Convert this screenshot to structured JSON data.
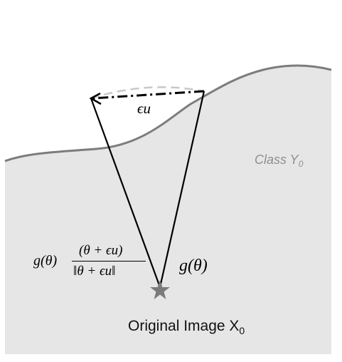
{
  "diagram": {
    "eps_u_label": "ϵu",
    "g_theta_label": "g(θ)",
    "g_prefix": "g(θ)",
    "numerator": "(θ + ϵu)",
    "denominator": "‖θ + ϵu‖",
    "class_label": "Class Y",
    "class_sub": "0",
    "caption": "Original Image X",
    "caption_sub": "0",
    "colors": {
      "region_fill": "#e6e6e6",
      "boundary": "#7c7c7c",
      "arc": "#c8c8c8",
      "star": "#7a7a7a",
      "lines": "#000000"
    }
  }
}
